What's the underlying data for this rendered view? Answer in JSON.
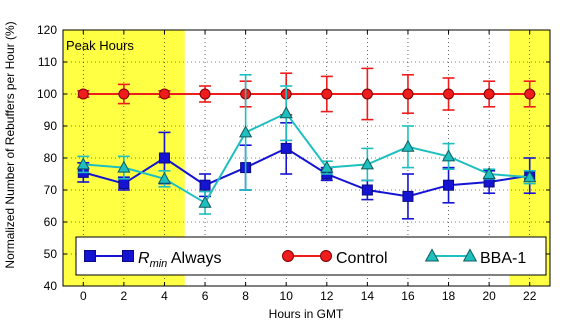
{
  "chart_data": {
    "type": "line",
    "title": "",
    "xlabel": "Hours in GMT",
    "ylabel": "Normalized Number of Rebuffers per Hour (%)",
    "xlim": [
      -1,
      23
    ],
    "ylim": [
      40,
      120
    ],
    "xticks": [
      0,
      2,
      4,
      6,
      8,
      10,
      12,
      14,
      16,
      18,
      20,
      22
    ],
    "yticks": [
      40,
      50,
      60,
      70,
      80,
      90,
      100,
      110,
      120
    ],
    "grid": true,
    "legend_position": "bottom",
    "highlight_label": "Peak Hours",
    "highlight_color": "#ffff44",
    "highlight_ranges": [
      [
        -1,
        5
      ],
      [
        21,
        23
      ]
    ],
    "series": [
      {
        "name_main": "R",
        "name_sub": "min",
        "name_suffix": " Always",
        "color": "#1414d2",
        "marker": "square",
        "x": [
          0,
          2,
          4,
          6,
          8,
          10,
          12,
          14,
          16,
          18,
          20,
          22
        ],
        "values": [
          75.5,
          72,
          80,
          71.5,
          77,
          83,
          75,
          70,
          68,
          71.5,
          72.5,
          74.5
        ],
        "err": [
          3,
          2,
          8,
          3.5,
          7,
          8,
          2,
          3,
          7,
          5.5,
          3.5,
          5.5
        ]
      },
      {
        "name": "Control",
        "color": "#ee1c1c",
        "marker": "circle",
        "x": [
          0,
          2,
          4,
          6,
          8,
          10,
          12,
          14,
          16,
          18,
          20,
          22
        ],
        "values": [
          100,
          100,
          100,
          100,
          100,
          100,
          100,
          100,
          100,
          100,
          100,
          100
        ],
        "err": [
          1,
          3,
          1,
          2.5,
          4,
          6.5,
          5.5,
          8,
          6,
          5,
          4,
          4
        ]
      },
      {
        "name": "BBA-1",
        "color": "#1fbfbf",
        "marker": "triangle",
        "x": [
          0,
          2,
          4,
          6,
          8,
          10,
          12,
          14,
          16,
          18,
          20,
          22
        ],
        "values": [
          78,
          77,
          73.5,
          66,
          88,
          94,
          77,
          78,
          83.5,
          80.5,
          75,
          74
        ],
        "err": [
          2.5,
          3.5,
          2.5,
          3.5,
          18,
          8.5,
          2,
          5,
          6.5,
          4,
          1.5,
          2
        ]
      }
    ]
  }
}
